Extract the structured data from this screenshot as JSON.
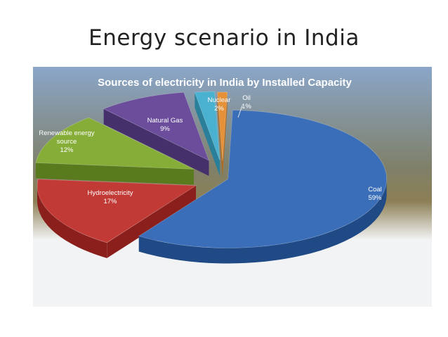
{
  "slide": {
    "title": "Energy scenario in India"
  },
  "colors": {
    "panel_top": "#8aa6c9",
    "panel_mid": "#7f8069",
    "panel_band": "#8c7f55",
    "panel_bottom": "#f2f3f4",
    "title_text": "#ffffff",
    "label_text": "#ffffff"
  },
  "chart_data": {
    "type": "pie",
    "title": "Sources of electricity in India by Installed Capacity",
    "slices": [
      {
        "name": "Coal",
        "value": 59,
        "value_label": "59%",
        "color": "#3a6eb8",
        "side": "#1f4a86"
      },
      {
        "name": "Hydroelectricity",
        "value": 17,
        "value_label": "17%",
        "color": "#c23a36",
        "side": "#8a1f1c"
      },
      {
        "name": "Renewable energy source",
        "name_lines": [
          "Renewable energy",
          "source"
        ],
        "value": 12,
        "value_label": "12%",
        "color": "#86ad37",
        "side": "#5a7a1e"
      },
      {
        "name": "Natural Gas",
        "value": 9,
        "value_label": "9%",
        "color": "#6b4d9b",
        "side": "#46306b"
      },
      {
        "name": "Nuclear",
        "value": 2,
        "value_label": "2%",
        "color": "#4bb1d0",
        "side": "#2a7f9a"
      },
      {
        "name": "Oil",
        "value": 1,
        "value_label": "1%",
        "color": "#e69138",
        "side": "#b06a1e"
      }
    ],
    "legend": "none"
  }
}
